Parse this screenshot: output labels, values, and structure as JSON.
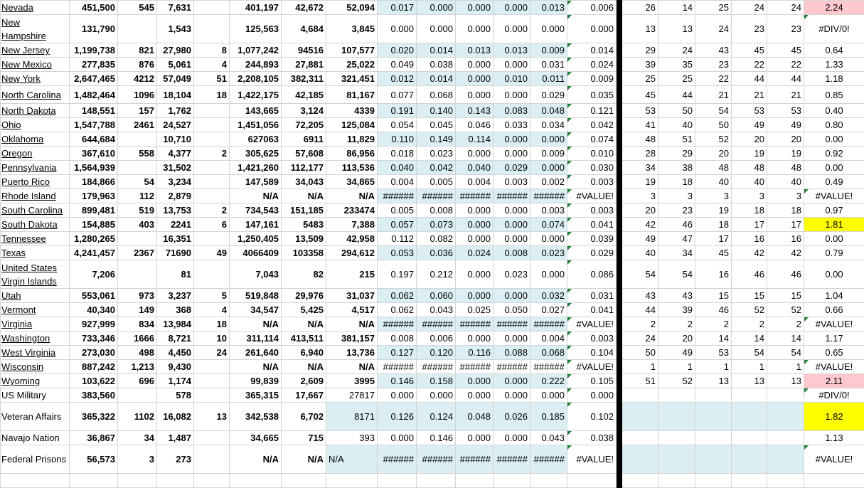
{
  "colors": {
    "band": "#daeef3",
    "pink": "#ffc7ce",
    "yellow": "#ffff00",
    "error_indicator": "#1e7e34"
  },
  "rows": [
    {
      "name": "Nevada",
      "link": true,
      "cells": [
        "451,500",
        "545",
        "7,631",
        "",
        "401,197",
        "42,672",
        "52,094",
        "0.017",
        "0.000",
        "0.000",
        "0.000",
        "0.013",
        "0.006",
        "26",
        "14",
        "25",
        "24",
        "24",
        "2.24"
      ],
      "highlight": "pink"
    },
    {
      "name": "New Hampshire",
      "link": true,
      "cells": [
        "131,790",
        "",
        "1,543",
        "",
        "125,563",
        "4,684",
        "3,845",
        "0.000",
        "0.000",
        "0.000",
        "0.000",
        "0.000",
        "0.000",
        "13",
        "13",
        "24",
        "23",
        "23",
        "#DIV/0!"
      ]
    },
    {
      "name": "New Jersey",
      "link": true,
      "cells": [
        "1,199,738",
        "821",
        "27,980",
        "8",
        "1,077,242",
        "94516",
        "107,577",
        "0.020",
        "0.014",
        "0.013",
        "0.013",
        "0.009",
        "0.014",
        "29",
        "24",
        "43",
        "45",
        "45",
        "0.64"
      ]
    },
    {
      "name": "New Mexico",
      "link": true,
      "cells": [
        "277,835",
        "876",
        "5,061",
        "4",
        "244,893",
        "27,881",
        "25,022",
        "0.049",
        "0.038",
        "0.000",
        "0.000",
        "0.031",
        "0.024",
        "39",
        "35",
        "23",
        "22",
        "22",
        "1.33"
      ]
    },
    {
      "name": "New York",
      "link": true,
      "cells": [
        "2,647,465",
        "4212",
        "57,049",
        "51",
        "2,208,105",
        "382,311",
        "321,451",
        "0.012",
        "0.014",
        "0.000",
        "0.010",
        "0.011",
        "0.009",
        "25",
        "25",
        "22",
        "44",
        "44",
        "1.18"
      ]
    },
    {
      "name": "North Carolina",
      "link": true,
      "cells": [
        "1,482,464",
        "1096",
        "18,104",
        "18",
        "1,422,175",
        "42,185",
        "81,167",
        "0.077",
        "0.068",
        "0.000",
        "0.000",
        "0.029",
        "0.035",
        "45",
        "44",
        "21",
        "21",
        "21",
        "0.85"
      ]
    },
    {
      "name": "North Dakota",
      "link": true,
      "cells": [
        "148,551",
        "157",
        "1,762",
        "",
        "143,665",
        "3,124",
        "4339",
        "0.191",
        "0.140",
        "0.143",
        "0.083",
        "0.048",
        "0.121",
        "53",
        "50",
        "54",
        "53",
        "53",
        "0.40"
      ]
    },
    {
      "name": "Ohio",
      "link": true,
      "cells": [
        "1,547,788",
        "2461",
        "24,527",
        "",
        "1,451,056",
        "72,205",
        "125,084",
        "0.054",
        "0.045",
        "0.046",
        "0.033",
        "0.034",
        "0.042",
        "41",
        "40",
        "50",
        "49",
        "49",
        "0.80"
      ]
    },
    {
      "name": "Oklahoma",
      "link": true,
      "cells": [
        "644,684",
        "",
        "10,710",
        "",
        "627063",
        "6911",
        "11,829",
        "0.110",
        "0.149",
        "0.114",
        "0.000",
        "0.000",
        "0.074",
        "48",
        "51",
        "52",
        "20",
        "20",
        "0.00"
      ]
    },
    {
      "name": "Oregon",
      "link": true,
      "cells": [
        "367,610",
        "558",
        "4,377",
        "2",
        "305,625",
        "57,608",
        "86,956",
        "0.018",
        "0.023",
        "0.000",
        "0.000",
        "0.009",
        "0.010",
        "28",
        "29",
        "20",
        "19",
        "19",
        "0.92"
      ]
    },
    {
      "name": "Pennsylvania",
      "link": true,
      "cells": [
        "1,564,939",
        "",
        "31,502",
        "",
        "1,421,260",
        "112,177",
        "113,536",
        "0.040",
        "0.042",
        "0.040",
        "0.029",
        "0.000",
        "0.030",
        "34",
        "38",
        "48",
        "48",
        "48",
        "0.00"
      ]
    },
    {
      "name": "Puerto Rico",
      "link": true,
      "cells": [
        "184,866",
        "54",
        "3,234",
        "",
        "147,589",
        "34,043",
        "34,865",
        "0.004",
        "0.005",
        "0.004",
        "0.003",
        "0.002",
        "0.003",
        "19",
        "18",
        "40",
        "40",
        "40",
        "0.49"
      ]
    },
    {
      "name": "Rhode Island",
      "link": true,
      "cells": [
        "179,963",
        "112",
        "2,879",
        "",
        "N/A",
        "N/A",
        "N/A",
        "######",
        "######",
        "######",
        "######",
        "######",
        "#VALUE!",
        "3",
        "3",
        "3",
        "3",
        "3",
        "#VALUE!"
      ]
    },
    {
      "name": "South Carolina",
      "link": true,
      "cells": [
        "899,481",
        "519",
        "13,753",
        "2",
        "734,543",
        "151,185",
        "233474",
        "0.005",
        "0.008",
        "0.000",
        "0.000",
        "0.003",
        "0.003",
        "20",
        "23",
        "19",
        "18",
        "18",
        "0.97"
      ]
    },
    {
      "name": "South Dakota",
      "link": true,
      "cells": [
        "154,885",
        "403",
        "2241",
        "6",
        "147,161",
        "5483",
        "7,388",
        "0.057",
        "0.073",
        "0.000",
        "0.000",
        "0.074",
        "0.041",
        "42",
        "46",
        "18",
        "17",
        "17",
        "1.81"
      ],
      "highlight": "yellow"
    },
    {
      "name": "Tennessee",
      "link": true,
      "cells": [
        "1,280,265",
        "",
        "16,351",
        "",
        "1,250,405",
        "13,509",
        "42,958",
        "0.112",
        "0.082",
        "0.000",
        "0.000",
        "0.000",
        "0.039",
        "49",
        "47",
        "17",
        "16",
        "16",
        "0.00"
      ]
    },
    {
      "name": "Texas",
      "link": true,
      "cells": [
        "4,241,457",
        "2367",
        "71690",
        "49",
        "4066409",
        "103358",
        "294,612",
        "0.053",
        "0.036",
        "0.024",
        "0.008",
        "0.023",
        "0.029",
        "40",
        "34",
        "45",
        "42",
        "42",
        "0.79"
      ]
    },
    {
      "name": "United States Virgin Islands",
      "link": true,
      "cells": [
        "7,206",
        "",
        "81",
        "",
        "7,043",
        "82",
        "215",
        "0.197",
        "0.212",
        "0.000",
        "0.023",
        "0.000",
        "0.086",
        "54",
        "54",
        "16",
        "46",
        "46",
        "0.00"
      ]
    },
    {
      "name": "Utah",
      "link": true,
      "cells": [
        "553,061",
        "973",
        "3,237",
        "5",
        "519,848",
        "29,976",
        "31,037",
        "0.062",
        "0.060",
        "0.000",
        "0.000",
        "0.032",
        "0.031",
        "43",
        "43",
        "15",
        "15",
        "15",
        "1.04"
      ]
    },
    {
      "name": "Vermont",
      "link": true,
      "cells": [
        "40,340",
        "149",
        "368",
        "4",
        "34,547",
        "5,425",
        "4,517",
        "0.062",
        "0.043",
        "0.025",
        "0.050",
        "0.027",
        "0.041",
        "44",
        "39",
        "46",
        "52",
        "52",
        "0.66"
      ]
    },
    {
      "name": "Virginia",
      "link": true,
      "cells": [
        "927,999",
        "834",
        "13,984",
        "18",
        "N/A",
        "N/A",
        "N/A",
        "######",
        "######",
        "######",
        "######",
        "######",
        "#VALUE!",
        "2",
        "2",
        "2",
        "2",
        "2",
        "#VALUE!"
      ]
    },
    {
      "name": "Washington",
      "link": true,
      "cells": [
        "733,346",
        "1666",
        "8,721",
        "10",
        "311,114",
        "413,511",
        "381,157",
        "0.008",
        "0.006",
        "0.000",
        "0.000",
        "0.004",
        "0.003",
        "24",
        "20",
        "14",
        "14",
        "14",
        "1.17"
      ]
    },
    {
      "name": "West Virginia",
      "link": true,
      "cells": [
        "273,030",
        "498",
        "4,450",
        "24",
        "261,640",
        "6,940",
        "13,736",
        "0.127",
        "0.120",
        "0.116",
        "0.088",
        "0.068",
        "0.104",
        "50",
        "49",
        "53",
        "54",
        "54",
        "0.65"
      ]
    },
    {
      "name": "Wisconsin",
      "link": true,
      "cells": [
        "887,242",
        "1,213",
        "9,430",
        "",
        "N/A",
        "N/A",
        "N/A",
        "######",
        "######",
        "######",
        "######",
        "######",
        "#VALUE!",
        "1",
        "1",
        "1",
        "1",
        "1",
        "#VALUE!"
      ]
    },
    {
      "name": "Wyoming",
      "link": true,
      "cells": [
        "103,622",
        "696",
        "1,174",
        "",
        "99,839",
        "2,609",
        "3995",
        "0.146",
        "0.158",
        "0.000",
        "0.000",
        "0.222",
        "0.105",
        "51",
        "52",
        "13",
        "13",
        "13",
        "2.11"
      ],
      "highlight": "pink"
    },
    {
      "name": "US Military",
      "link": false,
      "cells": [
        "383,560",
        "",
        "578",
        "",
        "365,315",
        "17,667",
        "27817",
        "0.000",
        "0.000",
        "0.000",
        "0.000",
        "0.000",
        "0.000",
        "",
        "",
        "",
        "",
        "",
        "#DIV/0!"
      ]
    },
    {
      "name": "Veteran Affairs",
      "link": false,
      "cells": [
        "365,322",
        "1102",
        "16,082",
        "13",
        "342,538",
        "6,702",
        "8171",
        "0.126",
        "0.124",
        "0.048",
        "0.026",
        "0.185",
        "0.102",
        "",
        "",
        "",
        "",
        "",
        "1.82"
      ],
      "highlight": "yellow"
    },
    {
      "name": "Navajo Nation",
      "link": false,
      "cells": [
        "36,867",
        "34",
        "1,487",
        "",
        "34,665",
        "715",
        "393",
        "0.000",
        "0.146",
        "0.000",
        "0.000",
        "0.043",
        "0.038",
        "",
        "",
        "",
        "",
        "",
        "1.13"
      ]
    },
    {
      "name": "Federal Prisons",
      "link": false,
      "cells": [
        "56,573",
        "3",
        "273",
        "",
        "N/A",
        "N/A",
        "N/A",
        "######",
        "######",
        "######",
        "######",
        "######",
        "#VALUE!",
        "",
        "",
        "",
        "",
        "",
        "#VALUE!"
      ]
    }
  ]
}
